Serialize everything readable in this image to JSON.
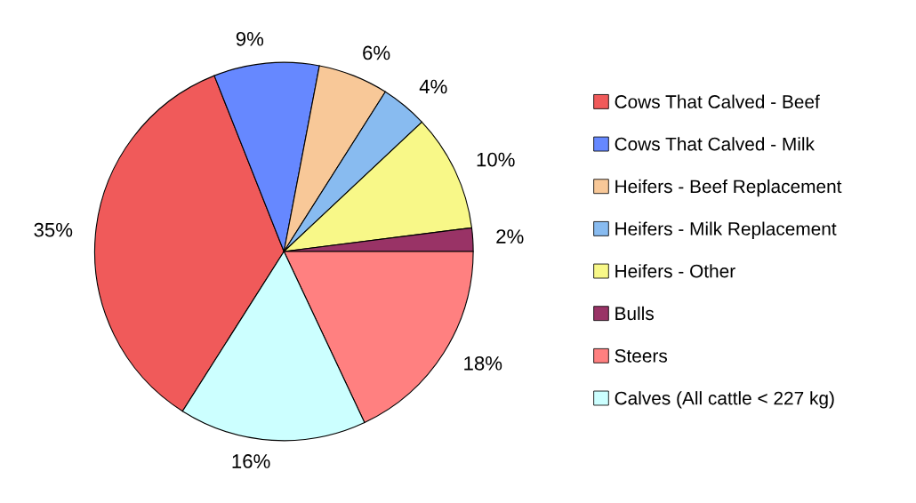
{
  "chart_data": {
    "type": "pie",
    "categories": [
      "Cows That Calved - Beef",
      "Cows That Calved - Milk",
      "Heifers - Beef Replacement",
      "Heifers - Milk Replacement",
      "Heifers - Other",
      "Bulls",
      "Steers",
      "Calves (All cattle < 227 kg)"
    ],
    "values": [
      35,
      9,
      6,
      4,
      10,
      2,
      18,
      16
    ],
    "colors": [
      "#f05a5a",
      "#6688ff",
      "#f8c898",
      "#88bbf0",
      "#f8f888",
      "#993366",
      "#ff8080",
      "#ccffff"
    ],
    "value_labels": [
      "35%",
      "9%",
      "6%",
      "4%",
      "10%",
      "2%",
      "18%",
      "16%"
    ],
    "legend": "right"
  }
}
